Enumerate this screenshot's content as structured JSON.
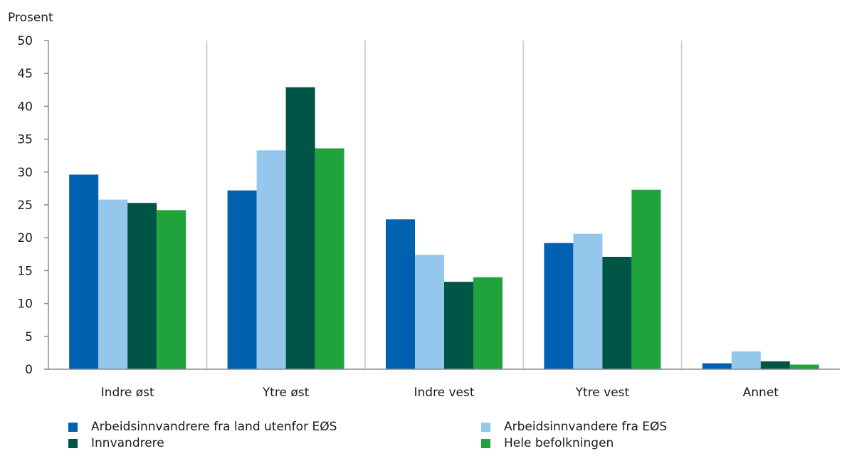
{
  "chart_data": {
    "type": "bar",
    "ylabel": "Prosent",
    "xlabel": "",
    "ylim": [
      0,
      50
    ],
    "yticks": [
      0,
      5,
      10,
      15,
      20,
      25,
      30,
      35,
      40,
      45,
      50
    ],
    "categories": [
      "Indre øst",
      "Ytre øst",
      "Indre vest",
      "Ytre vest",
      "Annet"
    ],
    "series": [
      {
        "name": "Arbeidsinnvandrere fra land utenfor EØS",
        "color": "#0061b0",
        "values": [
          29.6,
          27.2,
          22.8,
          19.2,
          0.9
        ]
      },
      {
        "name": "Arbeidsinnvandere fra EØS",
        "color": "#95c6ec",
        "values": [
          25.8,
          33.3,
          17.4,
          20.6,
          2.7
        ]
      },
      {
        "name": "Innvandrere",
        "color": "#005546",
        "values": [
          25.3,
          42.9,
          13.3,
          17.1,
          1.2
        ]
      },
      {
        "name": "Hele befolkningen",
        "color": "#21a33b",
        "values": [
          24.2,
          33.6,
          14.0,
          27.3,
          0.7
        ]
      }
    ],
    "grid": {
      "vertical_separators": true,
      "horizontal": false
    },
    "legend_position": "bottom",
    "colors": {
      "axis": "#8c8c8c",
      "separator": "#cfcfcf",
      "text": "#1a1a1a"
    }
  }
}
